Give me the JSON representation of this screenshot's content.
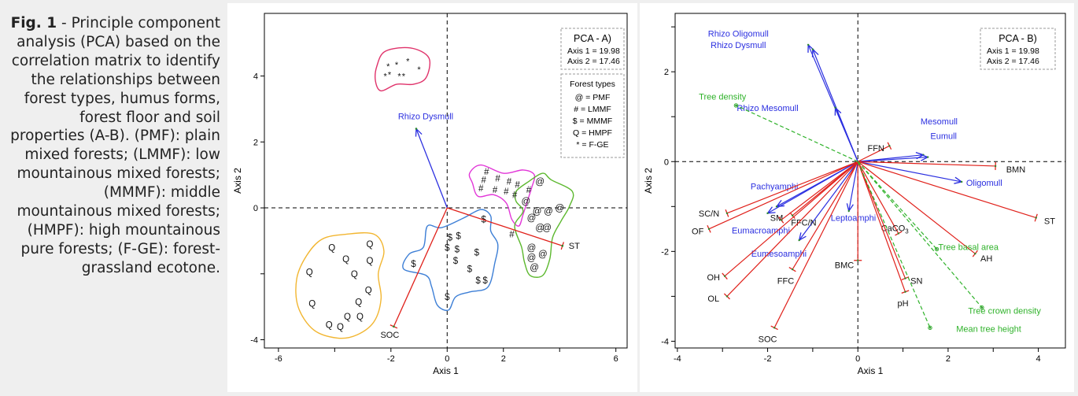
{
  "caption": {
    "label": "Fig. 1",
    "text": " - Principle component analysis (PCA) based on the correlation matrix to identify the relationships between forest types, humus forms, forest floor and soil properties (A-B). (PMF): plain mixed forests; (LMMF): low mountainous mixed forests; (MMMF): middle mountainous mixed forests; (HMPF): high mountainous pure forests; (F-GE): forest-grassland ecotone."
  },
  "chart_data": [
    {
      "type": "scatter",
      "panel": "A",
      "title": "PCA - A)",
      "axis_info": [
        "Axis 1 = 19.98",
        "Axis 2 = 17.46"
      ],
      "xlabel": "Axis 1",
      "ylabel": "Axis 2",
      "xlim": [
        -6.5,
        6.4
      ],
      "ylim": [
        -4.25,
        5.9
      ],
      "xticks": [
        -6,
        -4,
        -2,
        0,
        2,
        4,
        6
      ],
      "xtick_labels": [
        "-6",
        "",
        "-2",
        "0",
        "2",
        "",
        "6"
      ],
      "yticks": [
        -4,
        -2,
        0,
        2,
        4
      ],
      "ytick_labels": [
        "-4",
        "",
        "0",
        "2",
        "4"
      ],
      "legend": {
        "title": "Forest types",
        "entries": [
          "@ = PMF",
          "# = LMMF",
          "$ = MMMF",
          "Q = HMPF",
          "* = F-GE"
        ],
        "placement": "top-right"
      },
      "colors": {
        "hull_FGE": "#e0336b",
        "hull_LMMF": "#e236d8",
        "hull_PMF": "#5cb82e",
        "hull_MMMF": "#3d7fd6",
        "hull_HMPF": "#f2b631",
        "red_vector": "#e0201a",
        "blue_vector": "#2b2fe0"
      },
      "series": [
        {
          "name": "F-GE",
          "marker": "*",
          "points": [
            [
              -2.1,
              4.3
            ],
            [
              -1.8,
              4.35
            ],
            [
              -1.4,
              4.45
            ],
            [
              -2.2,
              4.0
            ],
            [
              -2.05,
              4.05
            ],
            [
              -1.7,
              4.0
            ],
            [
              -1.55,
              4.0
            ],
            [
              -1.0,
              4.2
            ]
          ]
        },
        {
          "name": "LMMF",
          "marker": "#",
          "points": [
            [
              1.4,
              1.1
            ],
            [
              1.8,
              0.9
            ],
            [
              2.2,
              0.8
            ],
            [
              1.3,
              0.85
            ],
            [
              2.5,
              0.7
            ],
            [
              2.9,
              0.55
            ],
            [
              1.2,
              0.6
            ],
            [
              1.7,
              0.55
            ],
            [
              2.1,
              0.5
            ],
            [
              2.4,
              0.4
            ],
            [
              2.3,
              -0.8
            ]
          ]
        },
        {
          "name": "PMF",
          "marker": "@",
          "points": [
            [
              3.3,
              0.8
            ],
            [
              2.8,
              0.2
            ],
            [
              3.2,
              -0.1
            ],
            [
              3.6,
              -0.1
            ],
            [
              4.0,
              0.0
            ],
            [
              3.0,
              -0.3
            ],
            [
              3.3,
              -0.6
            ],
            [
              3.55,
              -0.6
            ],
            [
              3.0,
              -1.2
            ],
            [
              3.4,
              -1.4
            ],
            [
              3.1,
              -1.8
            ],
            [
              3.0,
              -1.5
            ]
          ]
        },
        {
          "name": "MMMF",
          "marker": "$",
          "points": [
            [
              1.3,
              -0.35
            ],
            [
              0.1,
              -0.9
            ],
            [
              0.4,
              -0.85
            ],
            [
              0,
              -1.2
            ],
            [
              0.35,
              -1.25
            ],
            [
              1.05,
              -1.35
            ],
            [
              -1.2,
              -1.7
            ],
            [
              0.3,
              -1.6
            ],
            [
              0.8,
              -1.85
            ],
            [
              1.1,
              -2.2
            ],
            [
              1.35,
              -2.2
            ],
            [
              0,
              -2.7
            ]
          ]
        },
        {
          "name": "HMPF",
          "marker": "Q",
          "points": [
            [
              -4.1,
              -1.2
            ],
            [
              -2.75,
              -1.1
            ],
            [
              -3.6,
              -1.55
            ],
            [
              -2.75,
              -1.6
            ],
            [
              -4.9,
              -1.95
            ],
            [
              -3.3,
              -2.0
            ],
            [
              -2.8,
              -2.5
            ],
            [
              -4.8,
              -2.9
            ],
            [
              -3.15,
              -2.85
            ],
            [
              -3.1,
              -3.3
            ],
            [
              -3.55,
              -3.3
            ],
            [
              -4.2,
              -3.55
            ],
            [
              -3.8,
              -3.6
            ]
          ]
        }
      ],
      "vectors": [
        {
          "label": "Rhizo Dysmull",
          "color": "#2b2fe0",
          "x": -1.1,
          "y": 2.4
        },
        {
          "label": "ST",
          "color": "#e0201a",
          "x": 4.1,
          "y": -1.15
        },
        {
          "label": "SOC",
          "color": "#e0201a",
          "x": -1.9,
          "y": -3.6
        }
      ]
    },
    {
      "type": "scatter",
      "panel": "B",
      "title": "PCA - B)",
      "axis_info": [
        "Axis 1 = 19.98",
        "Axis 2 = 17.46"
      ],
      "xlabel": "Axis 1",
      "ylabel": "Axis 2",
      "xlim": [
        -4.05,
        4.6
      ],
      "ylim": [
        -4.15,
        3.3
      ],
      "xticks": [
        -4,
        -3,
        -2,
        -1,
        0,
        1,
        2,
        3,
        4
      ],
      "xtick_labels": [
        "-4",
        "",
        "-2",
        "",
        "0",
        "",
        "2",
        "",
        "4"
      ],
      "yticks": [
        -4,
        -3,
        -2,
        -1,
        0,
        1,
        2,
        3
      ],
      "ytick_labels": [
        "-4",
        "",
        "-2",
        "",
        "0",
        "",
        "2",
        ""
      ],
      "vectors": [
        {
          "label": "Rhizo Oligomull",
          "color": "#2b2fe0",
          "style": "arrow",
          "x": -1.1,
          "y": 2.6
        },
        {
          "label": "Rhizo Dysmull",
          "color": "#2b2fe0",
          "style": "arrow",
          "x": -1.0,
          "y": 2.5
        },
        {
          "label": "Rhizo Mesomull",
          "color": "#2b2fe0",
          "style": "arrow",
          "x": -0.5,
          "y": 1.2
        },
        {
          "label": "Mesomull",
          "color": "#2b2fe0",
          "style": "arrow",
          "x": 1.45,
          "y": 0.15
        },
        {
          "label": "Eumull",
          "color": "#2b2fe0",
          "style": "arrow",
          "x": 1.55,
          "y": 0.1
        },
        {
          "label": "Oligomull",
          "color": "#2b2fe0",
          "style": "arrow",
          "x": 2.3,
          "y": -0.45
        },
        {
          "label": "Pachyamphi",
          "color": "#2b2fe0",
          "style": "arrow",
          "x": -1.8,
          "y": -1.0
        },
        {
          "label": "Eumacroamphi",
          "color": "#2b2fe0",
          "style": "arrow",
          "x": -2.0,
          "y": -1.15
        },
        {
          "label": "Leptoamphi",
          "color": "#2b2fe0",
          "style": "arrow",
          "x": -0.2,
          "y": -1.1
        },
        {
          "label": "Eumesoamphi",
          "color": "#2b2fe0",
          "style": "arrow",
          "x": -1.3,
          "y": -1.75
        },
        {
          "label": "FFN",
          "color": "#e0201a",
          "style": "bar",
          "x": 0.7,
          "y": 0.35
        },
        {
          "label": "BMN",
          "color": "#e0201a",
          "style": "bar",
          "x": 3.05,
          "y": -0.1
        },
        {
          "label": "ST",
          "color": "#e0201a",
          "style": "bar",
          "x": 3.95,
          "y": -1.25
        },
        {
          "label": "SC/N",
          "color": "#e0201a",
          "style": "bar",
          "x": -2.9,
          "y": -1.15
        },
        {
          "label": "SM",
          "color": "#e0201a",
          "style": "bar",
          "x": -1.45,
          "y": -1.2
        },
        {
          "label": "FFC/N",
          "color": "#e0201a",
          "style": "bar",
          "x": -1.7,
          "y": -1.3
        },
        {
          "label": "OF",
          "color": "#e0201a",
          "style": "bar",
          "x": -3.3,
          "y": -1.5
        },
        {
          "label": "CaCO3",
          "color": "#e0201a",
          "style": "bar",
          "x": 0.9,
          "y": -1.6
        },
        {
          "label": "AH",
          "color": "#e0201a",
          "style": "bar",
          "x": 2.6,
          "y": -2.05
        },
        {
          "label": "BMC",
          "color": "#e0201a",
          "style": "bar",
          "x": 0,
          "y": -2.2
        },
        {
          "label": "FFC",
          "color": "#e0201a",
          "style": "bar",
          "x": -1.45,
          "y": -2.4
        },
        {
          "label": "OH",
          "color": "#e0201a",
          "style": "bar",
          "x": -2.95,
          "y": -2.55
        },
        {
          "label": "SN",
          "color": "#e0201a",
          "style": "bar",
          "x": 1.05,
          "y": -2.6
        },
        {
          "label": "OL",
          "color": "#e0201a",
          "style": "bar",
          "x": -2.9,
          "y": -3.0
        },
        {
          "label": "pH",
          "color": "#e0201a",
          "style": "bar",
          "x": 1.05,
          "y": -2.9
        },
        {
          "label": "SOC",
          "color": "#e0201a",
          "style": "bar",
          "x": -1.85,
          "y": -3.7
        },
        {
          "label": "Tree density",
          "color": "#2fb22a",
          "style": "dashed",
          "x": -2.7,
          "y": 1.25
        },
        {
          "label": "Tree basal area",
          "color": "#2fb22a",
          "style": "dashed",
          "x": 1.75,
          "y": -1.95
        },
        {
          "label": "Tree crown density",
          "color": "#2fb22a",
          "style": "dashed",
          "x": 2.75,
          "y": -3.25
        },
        {
          "label": "Mean tree height",
          "color": "#2fb22a",
          "style": "dashed",
          "x": 1.6,
          "y": -3.7
        }
      ]
    }
  ]
}
